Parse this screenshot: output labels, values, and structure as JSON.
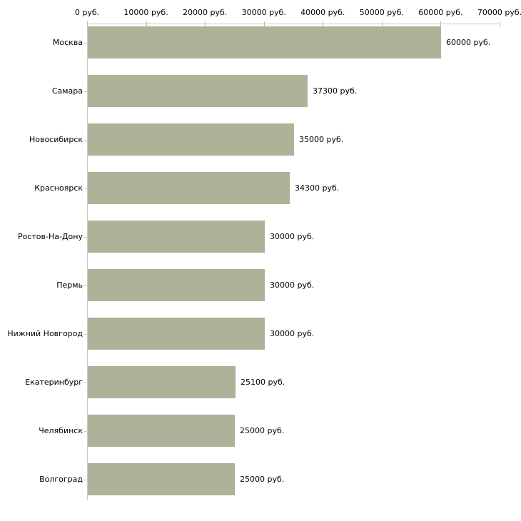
{
  "chart_data": {
    "type": "bar",
    "orientation": "horizontal",
    "title": "",
    "xlabel": "",
    "ylabel": "",
    "categories": [
      "Москва",
      "Самара",
      "Новосибирск",
      "Красноярск",
      "Ростов-На-Дону",
      "Пермь",
      "Нижний Новгород",
      "Екатеринбург",
      "Челябинск",
      "Волгоград"
    ],
    "values": [
      60000,
      37300,
      35000,
      34300,
      30000,
      30000,
      30000,
      25100,
      25000,
      25000
    ],
    "value_labels": [
      "60000 руб.",
      "37300 руб.",
      "35000 руб.",
      "34300 руб.",
      "30000 руб.",
      "30000 руб.",
      "30000 руб.",
      "25100 руб.",
      "25000 руб.",
      "25000 руб."
    ],
    "x_tick_labels": [
      "0 руб.",
      "10000 руб.",
      "20000 руб.",
      "30000 руб.",
      "40000 руб.",
      "50000 руб.",
      "60000 руб.",
      "70000 руб."
    ],
    "xlim": [
      0,
      70000
    ],
    "x_tick_step": 10000,
    "legend": "none",
    "grid": "off",
    "axis_position": "top",
    "colors": {
      "bar": "#acb399",
      "axis_line": "#c9c9c9",
      "tick_mark": "#c0bc97",
      "category_tick": "#d2ceba",
      "text": "#000000",
      "background": "#ffffff"
    }
  }
}
